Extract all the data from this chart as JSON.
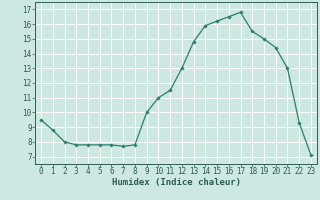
{
  "x": [
    0,
    1,
    2,
    3,
    4,
    5,
    6,
    7,
    8,
    9,
    10,
    11,
    12,
    13,
    14,
    15,
    16,
    17,
    18,
    19,
    20,
    21,
    22,
    23
  ],
  "y": [
    9.5,
    8.8,
    8.0,
    7.8,
    7.8,
    7.8,
    7.8,
    7.7,
    7.8,
    10.0,
    11.0,
    11.5,
    13.0,
    14.8,
    15.9,
    16.2,
    16.5,
    16.8,
    15.5,
    15.0,
    14.4,
    13.0,
    9.3,
    7.1
  ],
  "x_ticks": [
    0,
    1,
    2,
    3,
    4,
    5,
    6,
    7,
    8,
    9,
    10,
    11,
    12,
    13,
    14,
    15,
    16,
    17,
    18,
    19,
    20,
    21,
    22,
    23
  ],
  "y_ticks": [
    7,
    8,
    9,
    10,
    11,
    12,
    13,
    14,
    15,
    16,
    17
  ],
  "ylim": [
    6.5,
    17.5
  ],
  "xlim": [
    -0.5,
    23.5
  ],
  "xlabel": "Humidex (Indice chaleur)",
  "line_color": "#2e7d6e",
  "marker": "D",
  "marker_size": 1.8,
  "bg_color": "#cce8e0",
  "grid_color": "#ffffff",
  "tick_color": "#2e5e50",
  "label_color": "#2e5e50"
}
